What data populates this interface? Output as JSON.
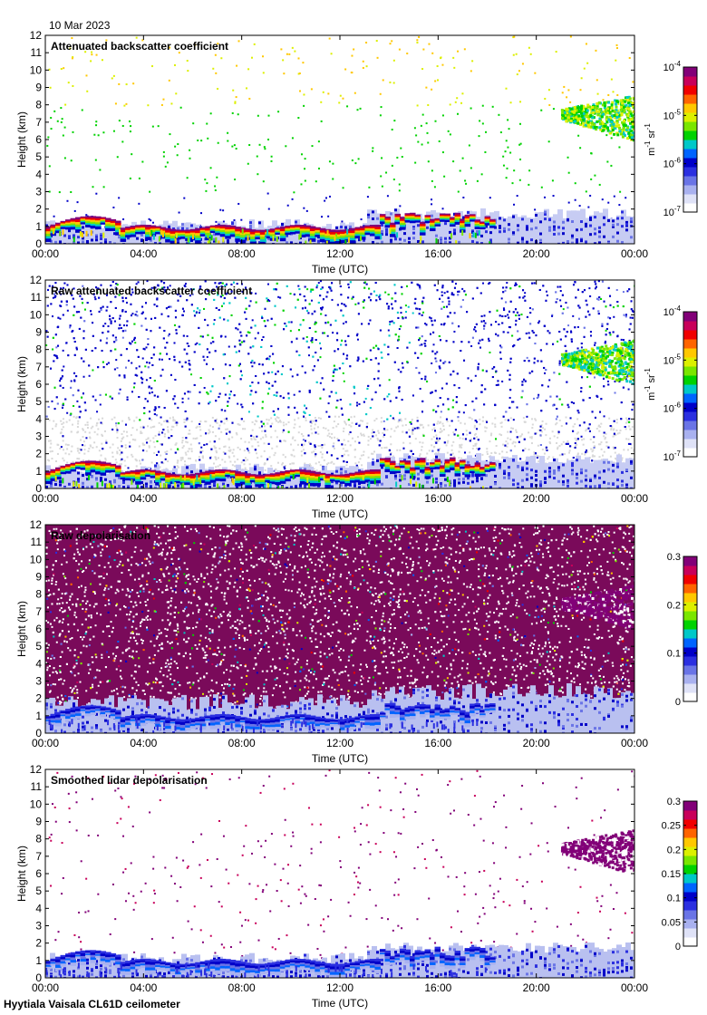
{
  "header": {
    "date": "10 Mar 2023"
  },
  "footer": {
    "site_instrument": "Hyytiala Vaisala CL61D ceilometer"
  },
  "colormap": [
    "#ffffff",
    "#dfe2f7",
    "#a9b1ef",
    "#6a74e6",
    "#2b2fe0",
    "#0000c8",
    "#0064ff",
    "#00c8c8",
    "#00d200",
    "#7ae600",
    "#dcf000",
    "#ffc800",
    "#ff6400",
    "#f00000",
    "#c8005a",
    "#820078"
  ],
  "chart_data": [
    {
      "type": "heatmap",
      "title": "Attenuated backscatter coefficient",
      "xlabel": "Time (UTC)",
      "ylabel": "Height (km)",
      "xlim": [
        0,
        24
      ],
      "ylim": [
        0,
        12
      ],
      "x_ticks": [
        "00:00",
        "04:00",
        "08:00",
        "12:00",
        "16:00",
        "20:00",
        "00:00"
      ],
      "y_ticks": [
        "0",
        "1",
        "2",
        "3",
        "4",
        "5",
        "6",
        "7",
        "8",
        "9",
        "10",
        "11",
        "12"
      ],
      "colorbar": {
        "scale": "log",
        "range": [
          1e-07,
          0.0001
        ],
        "ticks": [
          {
            "base": "10",
            "exp": "-4"
          },
          {
            "base": "10",
            "exp": "-5"
          },
          {
            "base": "10",
            "exp": "-6"
          },
          {
            "base": "10",
            "exp": "-7"
          }
        ],
        "unit": {
          "a": "m",
          "a_exp": "-1",
          "b": " sr",
          "b_exp": "-1"
        }
      },
      "features": {
        "background": "sparse",
        "noise_density": 0.05,
        "upper_cloud": true,
        "boundary_cloud": true
      }
    },
    {
      "type": "heatmap",
      "title": "Raw attenuated backscatter coefficient",
      "xlabel": "Time (UTC)",
      "ylabel": "Height (km)",
      "xlim": [
        0,
        24
      ],
      "ylim": [
        0,
        12
      ],
      "x_ticks": [
        "00:00",
        "04:00",
        "08:00",
        "12:00",
        "16:00",
        "20:00",
        "00:00"
      ],
      "y_ticks": [
        "0",
        "1",
        "2",
        "3",
        "4",
        "5",
        "6",
        "7",
        "8",
        "9",
        "10",
        "11",
        "12"
      ],
      "colorbar": {
        "scale": "log",
        "range": [
          1e-07,
          0.0001
        ],
        "ticks": [
          {
            "base": "10",
            "exp": "-4"
          },
          {
            "base": "10",
            "exp": "-5"
          },
          {
            "base": "10",
            "exp": "-6"
          },
          {
            "base": "10",
            "exp": "-7"
          }
        ],
        "unit": {
          "a": "m",
          "a_exp": "-1",
          "b": " sr",
          "b_exp": "-1"
        }
      },
      "features": {
        "background": "noisy_blue_grey",
        "noise_density": 0.5,
        "upper_cloud": true,
        "boundary_cloud": true
      }
    },
    {
      "type": "heatmap",
      "title": "Raw depolarisation",
      "xlabel": "Time (UTC)",
      "ylabel": "Height (km)",
      "xlim": [
        0,
        24
      ],
      "ylim": [
        0,
        12
      ],
      "x_ticks": [
        "00:00",
        "04:00",
        "08:00",
        "12:00",
        "16:00",
        "20:00",
        "00:00"
      ],
      "y_ticks": [
        "0",
        "1",
        "2",
        "3",
        "4",
        "5",
        "6",
        "7",
        "8",
        "9",
        "10",
        "11",
        "12"
      ],
      "colorbar": {
        "scale": "linear",
        "range": [
          0,
          0.3
        ],
        "ticks": [
          {
            "base": "0.3"
          },
          {
            "base": "0.2"
          },
          {
            "base": "0.1"
          },
          {
            "base": "0"
          }
        ]
      },
      "features": {
        "background": "noisy_purple",
        "noise_density": 0.6,
        "upper_cloud": true,
        "boundary_cloud": true
      }
    },
    {
      "type": "heatmap",
      "title": "Smoothed lidar depolarisation",
      "xlabel": "Time (UTC)",
      "ylabel": "Height (km)",
      "xlim": [
        0,
        24
      ],
      "ylim": [
        0,
        12
      ],
      "x_ticks": [
        "00:00",
        "04:00",
        "08:00",
        "12:00",
        "16:00",
        "20:00",
        "00:00"
      ],
      "y_ticks": [
        "0",
        "1",
        "2",
        "3",
        "4",
        "5",
        "6",
        "7",
        "8",
        "9",
        "10",
        "11",
        "12"
      ],
      "colorbar": {
        "scale": "linear",
        "range": [
          0,
          0.3
        ],
        "ticks": [
          {
            "base": "0.3"
          },
          {
            "base": "0.25"
          },
          {
            "base": "0.2"
          },
          {
            "base": "0.15"
          },
          {
            "base": "0.1"
          },
          {
            "base": "0.05"
          },
          {
            "base": "0"
          }
        ]
      },
      "features": {
        "background": "sparse_purple",
        "noise_density": 0.03,
        "upper_cloud": true,
        "boundary_cloud": true
      }
    }
  ]
}
